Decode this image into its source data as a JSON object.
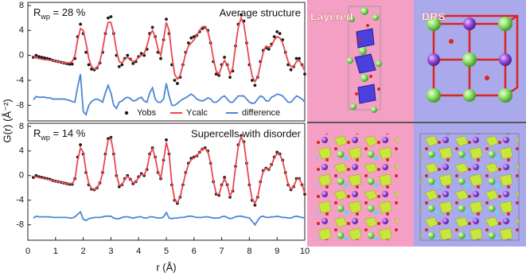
{
  "chart_data": [
    {
      "type": "line",
      "x": [
        0.2,
        0.3,
        0.4,
        0.5,
        0.6,
        0.7,
        0.8,
        0.9,
        1.0,
        1.1,
        1.2,
        1.3,
        1.4,
        1.5,
        1.6,
        1.7,
        1.8,
        1.9,
        2.0,
        2.1,
        2.2,
        2.3,
        2.4,
        2.5,
        2.6,
        2.7,
        2.8,
        2.9,
        3.0,
        3.1,
        3.2,
        3.3,
        3.4,
        3.5,
        3.6,
        3.7,
        3.8,
        3.9,
        4.0,
        4.1,
        4.2,
        4.3,
        4.4,
        4.5,
        4.6,
        4.7,
        4.8,
        4.9,
        5.0,
        5.1,
        5.2,
        5.3,
        5.4,
        5.5,
        5.6,
        5.7,
        5.8,
        5.9,
        6.0,
        6.1,
        6.2,
        6.3,
        6.4,
        6.5,
        6.6,
        6.7,
        6.8,
        6.9,
        7.0,
        7.1,
        7.2,
        7.3,
        7.4,
        7.5,
        7.6,
        7.7,
        7.8,
        7.9,
        8.0,
        8.1,
        8.2,
        8.3,
        8.4,
        8.5,
        8.6,
        8.7,
        8.8,
        8.9,
        9.0,
        9.1,
        9.2,
        9.3,
        9.4,
        9.5,
        9.6,
        9.7,
        9.8,
        9.9,
        10.0
      ],
      "series": [
        {
          "name": "Yobs",
          "color": "#1a1a1a",
          "mode": "markers",
          "values": [
            -0.3,
            0.0,
            -0.2,
            -0.3,
            -0.4,
            -0.5,
            -0.6,
            -0.8,
            -0.9,
            -1.0,
            -1.1,
            -1.2,
            -1.3,
            -1.4,
            -1.4,
            -0.5,
            3.0,
            5.0,
            3.5,
            0.5,
            -1.5,
            -2.2,
            -2.3,
            -2.0,
            -1.2,
            0.5,
            3.5,
            6.0,
            6.2,
            3.5,
            0.0,
            -1.8,
            -1.5,
            -0.5,
            0.0,
            -0.6,
            -1.3,
            -1.0,
            -0.2,
            0.3,
            0.0,
            1.0,
            3.5,
            4.5,
            3.0,
            0.5,
            -0.5,
            2.5,
            5.8,
            3.5,
            -1.5,
            -4.0,
            -4.5,
            -3.5,
            -1.5,
            0.5,
            2.0,
            2.8,
            3.0,
            3.2,
            3.8,
            4.3,
            4.5,
            4.0,
            2.0,
            -1.0,
            -3.0,
            -3.2,
            -1.5,
            -0.3,
            -1.5,
            -3.5,
            -2.5,
            1.5,
            5.0,
            6.5,
            5.5,
            2.0,
            -1.5,
            -4.0,
            -4.8,
            -3.5,
            -1.0,
            0.8,
            1.2,
            1.0,
            1.8,
            3.0,
            3.8,
            3.5,
            2.5,
            0.5,
            -1.5,
            -2.3,
            -1.8,
            -0.5,
            -0.5,
            -1.5,
            -3.0
          ]
        },
        {
          "name": "Ycalc",
          "color": "#e8484f",
          "mode": "line",
          "values": [
            -0.2,
            -0.4,
            -0.5,
            -0.6,
            -0.7,
            -0.7,
            -0.8,
            -0.8,
            -0.9,
            -1.0,
            -1.1,
            -1.2,
            -1.2,
            -1.2,
            -1.0,
            0.0,
            2.5,
            4.3,
            4.0,
            2.0,
            -0.5,
            -1.8,
            -2.2,
            -2.0,
            -1.0,
            1.0,
            3.5,
            5.3,
            5.3,
            3.5,
            0.8,
            -1.0,
            -1.2,
            -0.6,
            -0.3,
            -0.7,
            -1.0,
            -0.8,
            -0.3,
            0.0,
            0.3,
            1.5,
            3.2,
            4.0,
            3.0,
            1.0,
            0.0,
            2.5,
            5.3,
            4.0,
            0.0,
            -3.0,
            -3.8,
            -3.2,
            -1.5,
            0.3,
            1.5,
            2.0,
            2.5,
            3.2,
            4.0,
            4.6,
            4.6,
            3.8,
            2.0,
            -0.5,
            -2.5,
            -3.0,
            -1.8,
            -0.8,
            -1.5,
            -3.0,
            -2.0,
            1.5,
            4.5,
            6.0,
            5.0,
            2.0,
            -1.0,
            -3.3,
            -4.2,
            -3.5,
            -1.5,
            0.5,
            1.5,
            1.3,
            1.5,
            2.5,
            3.0,
            2.8,
            2.0,
            0.5,
            -1.0,
            -1.8,
            -1.8,
            -1.0,
            -0.8,
            -1.5,
            -2.5
          ]
        },
        {
          "name": "difference",
          "color": "#4a86d6",
          "mode": "line",
          "values": [
            -7.1,
            -6.6,
            -6.7,
            -6.7,
            -6.7,
            -6.8,
            -6.8,
            -7.0,
            -7.0,
            -7.0,
            -7.0,
            -7.0,
            -7.1,
            -7.2,
            -7.4,
            -7.5,
            -5.0,
            -3.0,
            -9.0,
            -9.5,
            -8.0,
            -7.4,
            -7.1,
            -7.0,
            -7.2,
            -7.5,
            -6.0,
            -4.8,
            -6.0,
            -8.0,
            -8.5,
            -7.5,
            -7.3,
            -6.9,
            -6.7,
            -6.9,
            -7.3,
            -7.2,
            -6.9,
            -6.7,
            -7.3,
            -7.5,
            -6.0,
            -5.2,
            -7.0,
            -7.5,
            -7.5,
            -7.0,
            -4.5,
            -6.5,
            -8.0,
            -8.0,
            -7.7,
            -7.3,
            -7.0,
            -6.8,
            -6.5,
            -6.2,
            -6.5,
            -7.0,
            -7.2,
            -7.3,
            -7.1,
            -6.8,
            -7.0,
            -7.5,
            -7.5,
            -7.2,
            -6.7,
            -6.5,
            -7.0,
            -7.5,
            -7.5,
            -7.0,
            -6.5,
            -6.5,
            -6.5,
            -7.0,
            -7.5,
            -7.7,
            -7.6,
            -7.0,
            -6.5,
            -6.7,
            -7.3,
            -7.3,
            -6.7,
            -6.5,
            -6.2,
            -6.3,
            -6.5,
            -7.0,
            -7.5,
            -7.5,
            -7.0,
            -6.5,
            -6.7,
            -7.0,
            -7.5
          ]
        }
      ],
      "xlim": [
        0,
        10
      ],
      "ylim": [
        -10.5,
        8.5
      ],
      "yticks": [
        -8,
        -4,
        0,
        4,
        8
      ],
      "rwp": {
        "symbol": "R",
        "subscript": "wp",
        "value": " = 28 %"
      },
      "subtitle": "Average structure",
      "legend": "bottom"
    },
    {
      "type": "line",
      "x": [
        0.2,
        0.3,
        0.4,
        0.5,
        0.6,
        0.7,
        0.8,
        0.9,
        1.0,
        1.1,
        1.2,
        1.3,
        1.4,
        1.5,
        1.6,
        1.7,
        1.8,
        1.9,
        2.0,
        2.1,
        2.2,
        2.3,
        2.4,
        2.5,
        2.6,
        2.7,
        2.8,
        2.9,
        3.0,
        3.1,
        3.2,
        3.3,
        3.4,
        3.5,
        3.6,
        3.7,
        3.8,
        3.9,
        4.0,
        4.1,
        4.2,
        4.3,
        4.4,
        4.5,
        4.6,
        4.7,
        4.8,
        4.9,
        5.0,
        5.1,
        5.2,
        5.3,
        5.4,
        5.5,
        5.6,
        5.7,
        5.8,
        5.9,
        6.0,
        6.1,
        6.2,
        6.3,
        6.4,
        6.5,
        6.6,
        6.7,
        6.8,
        6.9,
        7.0,
        7.1,
        7.2,
        7.3,
        7.4,
        7.5,
        7.6,
        7.7,
        7.8,
        7.9,
        8.0,
        8.1,
        8.2,
        8.3,
        8.4,
        8.5,
        8.6,
        8.7,
        8.8,
        8.9,
        9.0,
        9.1,
        9.2,
        9.3,
        9.4,
        9.5,
        9.6,
        9.7,
        9.8,
        9.9,
        10.0
      ],
      "series": [
        {
          "color": "#1a1a1a",
          "mode": "markers",
          "values": [
            -0.3,
            0.0,
            -0.2,
            -0.3,
            -0.4,
            -0.5,
            -0.6,
            -0.8,
            -0.9,
            -1.0,
            -1.1,
            -1.2,
            -1.3,
            -1.4,
            -1.4,
            -0.5,
            3.0,
            5.0,
            3.5,
            0.5,
            -1.5,
            -2.2,
            -2.3,
            -2.0,
            -1.2,
            0.5,
            3.5,
            6.0,
            6.2,
            3.5,
            0.0,
            -1.8,
            -1.5,
            -0.5,
            0.0,
            -0.6,
            -1.3,
            -1.0,
            -0.2,
            0.3,
            0.0,
            1.0,
            3.5,
            4.5,
            3.0,
            0.5,
            -0.5,
            2.5,
            5.8,
            3.5,
            -1.5,
            -4.0,
            -4.5,
            -3.5,
            -1.5,
            0.5,
            2.0,
            2.8,
            3.0,
            3.2,
            3.8,
            4.3,
            4.5,
            4.0,
            2.0,
            -1.0,
            -3.0,
            -3.2,
            -1.5,
            -0.3,
            -1.5,
            -3.5,
            -2.5,
            1.5,
            5.0,
            6.5,
            5.5,
            2.0,
            -1.5,
            -4.0,
            -4.8,
            -3.5,
            -1.0,
            0.8,
            1.2,
            1.0,
            1.8,
            3.0,
            3.8,
            3.5,
            2.5,
            0.5,
            -1.5,
            -2.3,
            -1.8,
            -0.5,
            -0.5,
            -1.5,
            -3.0
          ]
        },
        {
          "color": "#e8484f",
          "mode": "line",
          "values": [
            -0.2,
            -0.2,
            -0.3,
            -0.4,
            -0.5,
            -0.6,
            -0.7,
            -0.8,
            -0.9,
            -1.0,
            -1.1,
            -1.2,
            -1.3,
            -1.3,
            -1.3,
            -0.6,
            2.5,
            4.5,
            3.8,
            0.8,
            -1.3,
            -2.1,
            -2.3,
            -2.0,
            -1.2,
            0.4,
            3.3,
            5.8,
            6.0,
            3.6,
            0.2,
            -1.6,
            -1.5,
            -0.6,
            -0.1,
            -0.6,
            -1.2,
            -1.0,
            -0.3,
            0.2,
            0.1,
            1.1,
            3.4,
            4.4,
            3.0,
            0.6,
            -0.4,
            2.4,
            5.4,
            3.6,
            -1.3,
            -3.9,
            -4.4,
            -3.5,
            -1.5,
            0.4,
            1.8,
            2.6,
            2.9,
            3.2,
            3.8,
            4.3,
            4.4,
            3.9,
            2.0,
            -0.9,
            -2.9,
            -3.1,
            -1.6,
            -0.5,
            -1.5,
            -3.3,
            -2.4,
            1.4,
            4.8,
            6.3,
            5.4,
            2.0,
            -1.4,
            -3.8,
            -4.5,
            -3.5,
            -1.1,
            0.7,
            1.2,
            1.0,
            1.7,
            2.9,
            3.6,
            3.4,
            2.4,
            0.5,
            -1.4,
            -2.2,
            -1.8,
            -0.6,
            -0.5,
            -1.4,
            -2.9
          ]
        },
        {
          "color": "#4a86d6",
          "mode": "line",
          "values": [
            -6.9,
            -6.6,
            -6.7,
            -6.7,
            -6.7,
            -6.7,
            -6.7,
            -6.8,
            -6.8,
            -6.8,
            -6.8,
            -6.8,
            -6.8,
            -6.9,
            -6.9,
            -6.7,
            -6.3,
            -5.9,
            -7.1,
            -7.3,
            -7.0,
            -6.9,
            -6.8,
            -6.8,
            -6.8,
            -6.7,
            -6.6,
            -6.6,
            -6.6,
            -6.9,
            -7.0,
            -7.0,
            -6.8,
            -6.7,
            -6.7,
            -6.8,
            -6.9,
            -6.8,
            -6.7,
            -6.7,
            -6.9,
            -6.9,
            -6.7,
            -6.7,
            -6.8,
            -6.9,
            -6.9,
            -6.7,
            -6.0,
            -6.9,
            -7.0,
            -6.9,
            -6.9,
            -6.8,
            -6.8,
            -6.7,
            -6.6,
            -6.6,
            -6.7,
            -6.8,
            -6.8,
            -6.8,
            -6.7,
            -6.7,
            -6.8,
            -6.9,
            -6.9,
            -6.9,
            -6.7,
            -6.6,
            -6.8,
            -7.0,
            -6.9,
            -6.7,
            -6.6,
            -6.6,
            -6.7,
            -6.8,
            -6.9,
            -7.4,
            -8.0,
            -7.3,
            -6.7,
            -6.6,
            -6.8,
            -6.8,
            -6.7,
            -6.7,
            -6.6,
            -6.7,
            -6.8,
            -6.8,
            -6.9,
            -6.9,
            -6.7,
            -6.6,
            -6.7,
            -6.8,
            -6.9
          ]
        }
      ],
      "xlim": [
        0,
        10
      ],
      "xticks": [
        0,
        1,
        2,
        3,
        4,
        5,
        6,
        7,
        8,
        9,
        10
      ],
      "ylim": [
        -10.5,
        8.5
      ],
      "yticks": [
        -8,
        -4,
        0,
        4,
        8
      ],
      "x_label": "r (Å)",
      "y_label": "G(r) (Å⁻²)",
      "rwp": {
        "symbol": "R",
        "subscript": "wp",
        "value": " = 14 %"
      },
      "subtitle": "Supercells with disorder"
    }
  ],
  "structure_panels": {
    "layered": "Layered",
    "drs": "DRS"
  }
}
